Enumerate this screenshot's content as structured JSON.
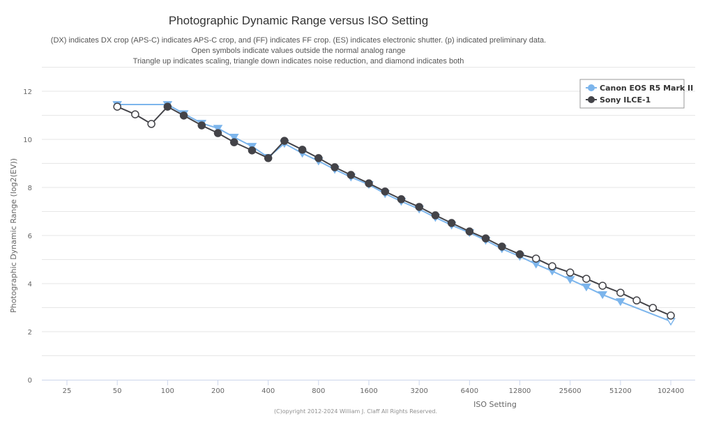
{
  "chart_data": {
    "type": "line",
    "title": "Photographic Dynamic Range versus ISO Setting",
    "subtitle_lines": [
      "(DX) indicates DX crop (APS-C) indicates APS-C crop, and (FF) indicates FF crop. (ES) indicates electronic shutter. (p) indicated preliminary data.",
      "Open symbols indicate values outside the normal analog range",
      "Triangle up indicates scaling, triangle down indicates noise reduction, and diamond indicates both"
    ],
    "xlabel": "ISO Setting",
    "ylabel": "Photographic Dynamic Range (log2(EV))",
    "x_scale": "log2",
    "x_ticks": [
      25,
      50,
      100,
      200,
      400,
      800,
      1600,
      3200,
      6400,
      12800,
      25600,
      51200,
      102400
    ],
    "xlim": [
      25,
      102400
    ],
    "y_ticks": [
      0,
      2,
      4,
      6,
      8,
      10,
      12
    ],
    "ylim": [
      0,
      13
    ],
    "grid": true,
    "legend_position": "top-right",
    "credit": "(C)opyright 2012-2024 William J. Claff All Rights Reserved.",
    "series": [
      {
        "name": "Canon EOS R5 Mark II",
        "color": "#7cb5ec",
        "marker": "triangle-down",
        "points": [
          {
            "iso": 50,
            "dr": 11.45,
            "open": false
          },
          {
            "iso": 100,
            "dr": 11.45,
            "open": false
          },
          {
            "iso": 125,
            "dr": 11.07,
            "open": false
          },
          {
            "iso": 160,
            "dr": 10.67,
            "open": false
          },
          {
            "iso": 200,
            "dr": 10.46,
            "open": false
          },
          {
            "iso": 250,
            "dr": 10.09,
            "open": false
          },
          {
            "iso": 320,
            "dr": 9.71,
            "open": false
          },
          {
            "iso": 400,
            "dr": 9.25,
            "open": false
          },
          {
            "iso": 500,
            "dr": 9.83,
            "open": false
          },
          {
            "iso": 640,
            "dr": 9.42,
            "open": false
          },
          {
            "iso": 800,
            "dr": 9.1,
            "open": false
          },
          {
            "iso": 1000,
            "dr": 8.75,
            "open": false
          },
          {
            "iso": 1250,
            "dr": 8.43,
            "open": false
          },
          {
            "iso": 1600,
            "dr": 8.12,
            "open": false
          },
          {
            "iso": 2000,
            "dr": 7.74,
            "open": false
          },
          {
            "iso": 2500,
            "dr": 7.42,
            "open": false
          },
          {
            "iso": 3200,
            "dr": 7.1,
            "open": false
          },
          {
            "iso": 4000,
            "dr": 6.75,
            "open": false
          },
          {
            "iso": 5000,
            "dr": 6.43,
            "open": false
          },
          {
            "iso": 6400,
            "dr": 6.12,
            "open": false
          },
          {
            "iso": 8000,
            "dr": 5.8,
            "open": false
          },
          {
            "iso": 10000,
            "dr": 5.45,
            "open": false
          },
          {
            "iso": 12800,
            "dr": 5.13,
            "open": false
          },
          {
            "iso": 16000,
            "dr": 4.81,
            "open": false
          },
          {
            "iso": 20000,
            "dr": 4.52,
            "open": false
          },
          {
            "iso": 25600,
            "dr": 4.17,
            "open": false
          },
          {
            "iso": 32000,
            "dr": 3.86,
            "open": false
          },
          {
            "iso": 40000,
            "dr": 3.54,
            "open": false
          },
          {
            "iso": 51200,
            "dr": 3.25,
            "open": false
          },
          {
            "iso": 102400,
            "dr": 2.43,
            "open": true
          }
        ]
      },
      {
        "name": "Sony ILCE-1",
        "color": "#434348",
        "marker": "circle",
        "points": [
          {
            "iso": 50,
            "dr": 11.36,
            "open": true
          },
          {
            "iso": 64,
            "dr": 11.04,
            "open": true
          },
          {
            "iso": 80,
            "dr": 10.64,
            "open": true
          },
          {
            "iso": 100,
            "dr": 11.36,
            "open": false
          },
          {
            "iso": 125,
            "dr": 10.99,
            "open": false
          },
          {
            "iso": 160,
            "dr": 10.58,
            "open": false
          },
          {
            "iso": 200,
            "dr": 10.26,
            "open": false
          },
          {
            "iso": 250,
            "dr": 9.88,
            "open": false
          },
          {
            "iso": 320,
            "dr": 9.54,
            "open": false
          },
          {
            "iso": 400,
            "dr": 9.22,
            "open": false
          },
          {
            "iso": 500,
            "dr": 9.94,
            "open": false
          },
          {
            "iso": 640,
            "dr": 9.57,
            "open": false
          },
          {
            "iso": 800,
            "dr": 9.22,
            "open": false
          },
          {
            "iso": 1000,
            "dr": 8.84,
            "open": false
          },
          {
            "iso": 1250,
            "dr": 8.52,
            "open": false
          },
          {
            "iso": 1600,
            "dr": 8.17,
            "open": false
          },
          {
            "iso": 2000,
            "dr": 7.83,
            "open": false
          },
          {
            "iso": 2500,
            "dr": 7.51,
            "open": false
          },
          {
            "iso": 3200,
            "dr": 7.19,
            "open": false
          },
          {
            "iso": 4000,
            "dr": 6.84,
            "open": false
          },
          {
            "iso": 5000,
            "dr": 6.52,
            "open": false
          },
          {
            "iso": 6400,
            "dr": 6.17,
            "open": false
          },
          {
            "iso": 8000,
            "dr": 5.88,
            "open": false
          },
          {
            "iso": 10000,
            "dr": 5.54,
            "open": false
          },
          {
            "iso": 12800,
            "dr": 5.22,
            "open": false
          },
          {
            "iso": 16000,
            "dr": 5.04,
            "open": true
          },
          {
            "iso": 20000,
            "dr": 4.72,
            "open": true
          },
          {
            "iso": 25600,
            "dr": 4.46,
            "open": true
          },
          {
            "iso": 32000,
            "dr": 4.2,
            "open": true
          },
          {
            "iso": 40000,
            "dr": 3.91,
            "open": true
          },
          {
            "iso": 51200,
            "dr": 3.62,
            "open": true
          },
          {
            "iso": 64000,
            "dr": 3.3,
            "open": true
          },
          {
            "iso": 80000,
            "dr": 2.99,
            "open": true
          },
          {
            "iso": 102400,
            "dr": 2.67,
            "open": true
          }
        ]
      }
    ]
  }
}
